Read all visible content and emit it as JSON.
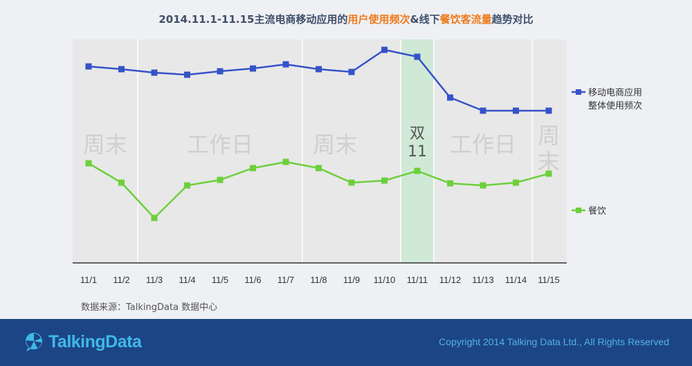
{
  "title": {
    "part1": "2014.11.1-11.15主流电商移动应用的",
    "highlight1": "用户使用频次",
    "part2": "&线下",
    "highlight2": "餐饮客流量",
    "part3": "趋势对比"
  },
  "chart_data": {
    "type": "line",
    "categories": [
      "11/1",
      "11/2",
      "11/3",
      "11/4",
      "11/5",
      "11/6",
      "11/7",
      "11/8",
      "11/9",
      "11/10",
      "11/11",
      "11/12",
      "11/13",
      "11/14",
      "11/15"
    ],
    "series": [
      {
        "name": "移动电商应用整体使用频次",
        "legend_lines": [
          "移动电商应用",
          "整体使用频次"
        ],
        "color": "#3552c9",
        "values": [
          96,
          100,
          105,
          108,
          103,
          99,
          93,
          100,
          104,
          72,
          82,
          141,
          160,
          160,
          160
        ]
      },
      {
        "name": "餐饮",
        "legend_lines": [
          "餐饮"
        ],
        "color": "#6cd03a",
        "values": [
          236,
          264,
          315,
          268,
          260,
          243,
          234,
          243,
          264,
          261,
          247,
          265,
          268,
          264,
          251
        ]
      }
    ],
    "value_scale_note": "relative index, no printed axis values",
    "regions": [
      {
        "label_lines": [
          "周末"
        ],
        "from": 0,
        "to": 1
      },
      {
        "label_lines": [
          "工作日"
        ],
        "from": 2,
        "to": 6
      },
      {
        "label_lines": [
          "周末"
        ],
        "from": 7,
        "to": 8
      },
      {
        "label_lines": [
          "双",
          "11"
        ],
        "from": 10,
        "to": 10,
        "highlight": true
      },
      {
        "label_lines": [
          "工作日"
        ],
        "from": 11,
        "to": 13
      },
      {
        "label_lines": [
          "周",
          "末"
        ],
        "from": 14,
        "to": 14
      }
    ],
    "grid": false,
    "legend_position": "right"
  },
  "source": "数据来源：TalkingData 数据中心",
  "footer": {
    "logo_text": "TalkingData",
    "copyright": "Copyright 2014 Talking Data Ltd., All Rights Reserved"
  },
  "colors": {
    "footer_bg": "#1c4585",
    "highlight": "#ef7a1e",
    "double11_band": "#cfe9d6"
  }
}
